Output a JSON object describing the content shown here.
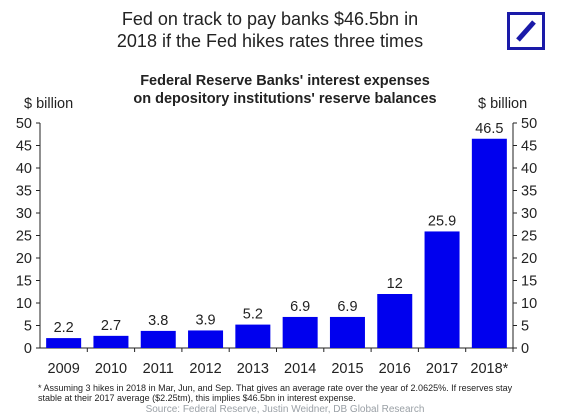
{
  "headline": {
    "line1": "Fed on track to pay banks $46.5bn in",
    "line2": "2018 if the Fed hikes rates three times"
  },
  "logo": {
    "name": "deutsche-bank-logo",
    "color": "#1a1aa8"
  },
  "chart_data": {
    "type": "bar",
    "title_line1": "Federal Reserve Banks' interest expenses",
    "title_line2": "on depository institutions' reserve balances",
    "ylabel_left": "$ billion",
    "ylabel_right": "$ billion",
    "categories": [
      "2009",
      "2010",
      "2011",
      "2012",
      "2013",
      "2014",
      "2015",
      "2016",
      "2017",
      "2018*"
    ],
    "values": [
      2.2,
      2.7,
      3.8,
      3.9,
      5.2,
      6.9,
      6.9,
      12,
      25.9,
      46.5
    ],
    "value_labels": [
      "2.2",
      "2.7",
      "3.8",
      "3.9",
      "5.2",
      "6.9",
      "6.9",
      "12",
      "25.9",
      "46.5"
    ],
    "ylim": [
      0,
      50
    ],
    "yticks": [
      0,
      5,
      10,
      15,
      20,
      25,
      30,
      35,
      40,
      45,
      50
    ],
    "ytick_labels": [
      "0",
      "5",
      "10",
      "15",
      "20",
      "25",
      "30",
      "35",
      "40",
      "45",
      "50"
    ],
    "bar_color": "#0000ee",
    "grid": false,
    "legend": "none"
  },
  "footnote": {
    "line1": "* Assuming 3 hikes in 2018 in Mar, Jun, and Sep. That gives an average rate over the year of 2.0625%. If reserves stay",
    "line2": "stable at their 2017 average ($2.25tm), this implies $46.5bn in interest expense."
  },
  "source": "Source: Federal Reserve, Justin Weidner, DB Global Research"
}
